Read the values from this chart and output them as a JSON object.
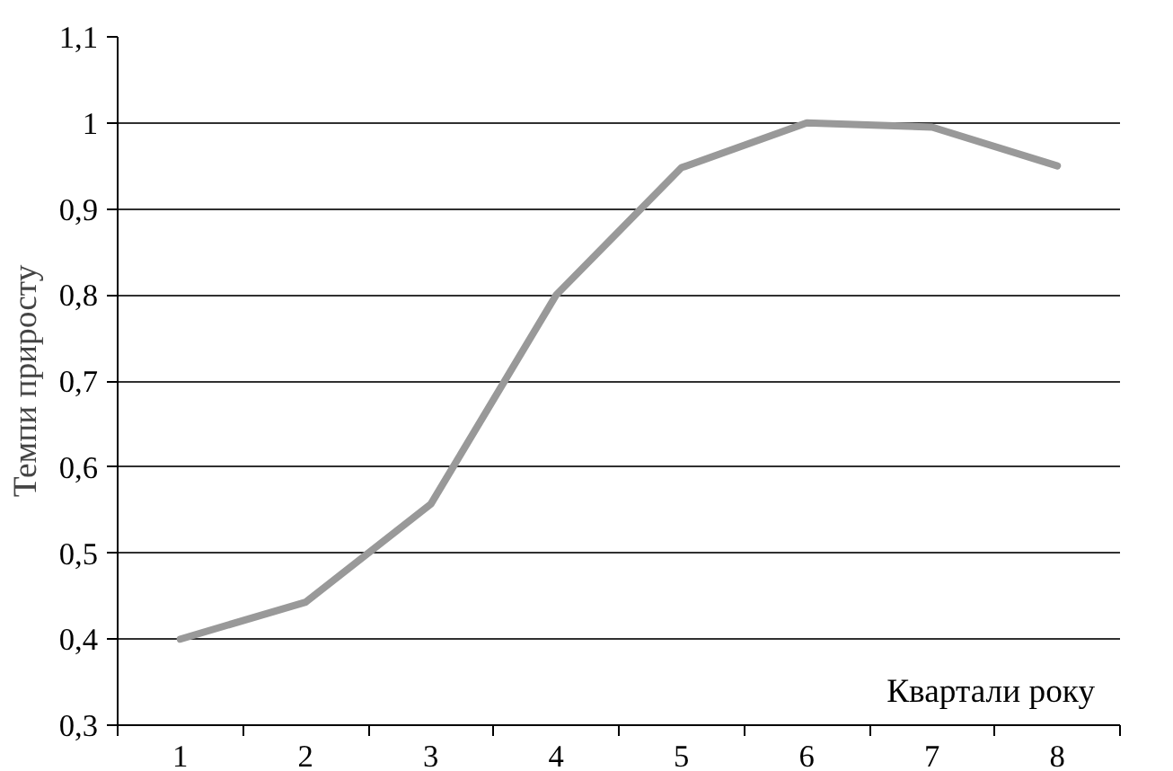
{
  "chart_data": {
    "type": "line",
    "xlabel": "Квартали року",
    "ylabel": "Темпи приросту",
    "categories": [
      "1",
      "2",
      "3",
      "4",
      "5",
      "6",
      "7",
      "8"
    ],
    "series": [
      {
        "color": "#999999",
        "values": [
          0.4,
          0.443,
          0.557,
          0.8,
          0.948,
          1.0,
          0.995,
          0.95
        ]
      }
    ],
    "ylim": [
      0.3,
      1.1
    ],
    "yticks": [
      {
        "value": 0.3,
        "label": "0,3"
      },
      {
        "value": 0.4,
        "label": "0,4"
      },
      {
        "value": 0.5,
        "label": "0,5"
      },
      {
        "value": 0.6,
        "label": "0,6"
      },
      {
        "value": 0.7,
        "label": "0,7"
      },
      {
        "value": 0.8,
        "label": "0,8"
      },
      {
        "value": 0.9,
        "label": "0,9"
      },
      {
        "value": 1,
        "label": "1"
      },
      {
        "value": 1.1,
        "label": "1,1"
      }
    ],
    "grid": "y",
    "marker": "none",
    "line_style": "solid"
  }
}
